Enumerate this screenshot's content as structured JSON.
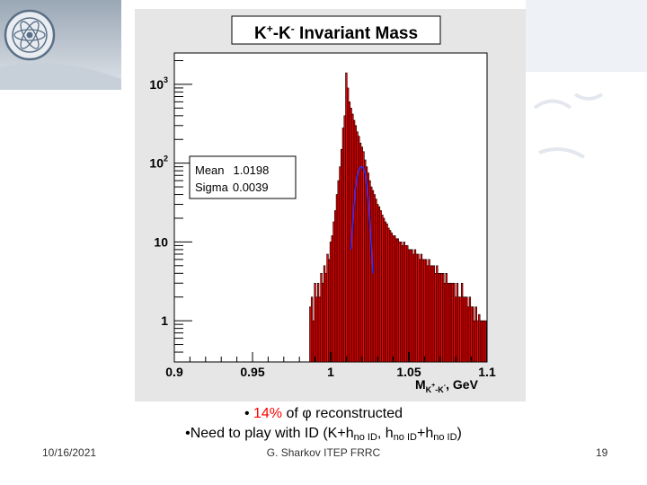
{
  "slide": {
    "bullet1": {
      "marker": "•",
      "percent": "14%",
      "of": "of",
      "phi": "φ",
      "rest": "reconstructed"
    },
    "bullet2": {
      "prefix": "•Need to play with ID (K+h",
      "sub1": "no ID",
      "mid1": ", h",
      "sub2": "no ID",
      "mid2": "+h",
      "sub3": "no ID",
      "suffix": ")"
    },
    "footer": {
      "date": "10/16/2021",
      "author": "G. Sharkov ITEP FRRC",
      "page": "19"
    }
  },
  "chart_data": {
    "type": "histogram",
    "title": "K+-K- Invariant Mass",
    "title_parts": [
      "K",
      "+",
      "-K",
      "-",
      " Invariant Mass"
    ],
    "xlabel_parts": [
      "M",
      "K",
      "+",
      "-K",
      "-",
      ", GeV"
    ],
    "yscale": "log",
    "xlim": [
      0.9,
      1.1
    ],
    "ylim": [
      0.3,
      2500
    ],
    "x_ticks": [
      0.9,
      0.95,
      1,
      1.05,
      1.1
    ],
    "x_tick_labels": [
      "0.9",
      "0.95",
      "1",
      "1.05",
      "1.1"
    ],
    "y_ticks": [
      1,
      10,
      100,
      1000
    ],
    "y_tick_labels": [
      "1",
      "10",
      "10^2",
      "10^3"
    ],
    "stats": {
      "mean_label": "Mean",
      "mean": "1.0198",
      "sigma_label": "Sigma",
      "sigma": "0.0039"
    },
    "series": [
      {
        "name": "histogram",
        "color": "#ff0000",
        "edge_color": "#000000",
        "x": [
          0.987,
          0.988,
          0.989,
          0.99,
          0.991,
          0.992,
          0.993,
          0.994,
          0.995,
          0.996,
          0.997,
          0.998,
          0.999,
          1.0,
          1.001,
          1.002,
          1.003,
          1.004,
          1.005,
          1.006,
          1.007,
          1.008,
          1.009,
          1.01,
          1.011,
          1.012,
          1.013,
          1.014,
          1.015,
          1.016,
          1.017,
          1.018,
          1.019,
          1.02,
          1.021,
          1.022,
          1.023,
          1.024,
          1.025,
          1.026,
          1.027,
          1.028,
          1.029,
          1.03,
          1.031,
          1.032,
          1.033,
          1.034,
          1.035,
          1.036,
          1.037,
          1.038,
          1.039,
          1.04,
          1.041,
          1.042,
          1.043,
          1.044,
          1.045,
          1.046,
          1.047,
          1.048,
          1.049,
          1.05,
          1.051,
          1.052,
          1.053,
          1.054,
          1.055,
          1.056,
          1.057,
          1.058,
          1.059,
          1.06,
          1.061,
          1.062,
          1.063,
          1.064,
          1.065,
          1.066,
          1.067,
          1.068,
          1.069,
          1.07,
          1.071,
          1.072,
          1.073,
          1.074,
          1.075,
          1.076,
          1.077,
          1.078,
          1.079,
          1.08,
          1.081,
          1.082,
          1.083,
          1.084,
          1.085,
          1.086,
          1.087,
          1.088,
          1.089,
          1.09,
          1.091,
          1.092,
          1.093,
          1.094,
          1.095,
          1.096,
          1.097,
          1.098,
          1.099
        ],
        "y": [
          1.5,
          2,
          1,
          3,
          2,
          3,
          2,
          4,
          3,
          5,
          4,
          7,
          6,
          10,
          12,
          18,
          25,
          40,
          60,
          90,
          150,
          280,
          400,
          1400,
          900,
          600,
          500,
          420,
          350,
          300,
          250,
          220,
          180,
          160,
          140,
          110,
          90,
          75,
          60,
          50,
          45,
          40,
          35,
          30,
          28,
          25,
          22,
          20,
          18,
          17,
          15,
          14,
          13,
          12,
          12,
          11,
          11,
          10,
          10,
          9,
          10,
          9,
          9,
          8,
          8,
          8,
          7,
          8,
          7,
          7,
          6,
          7,
          6,
          6,
          6,
          5,
          6,
          5,
          5,
          5,
          4,
          5,
          4,
          4,
          4,
          4,
          3,
          4,
          3,
          3,
          3,
          3,
          3,
          2,
          3,
          2,
          2,
          3,
          2,
          2,
          2,
          1.5,
          2,
          1.5,
          1.5,
          1,
          1.5,
          1,
          1.2,
          1,
          1,
          1,
          1
        ]
      },
      {
        "name": "gaussian-fit",
        "color": "#3030ff",
        "x": [
          1.013,
          1.014,
          1.015,
          1.016,
          1.017,
          1.018,
          1.019,
          1.0198,
          1.021,
          1.022,
          1.023,
          1.024,
          1.025,
          1.026,
          1.027
        ],
        "y": [
          8,
          17,
          31,
          50,
          69,
          82,
          89,
          91,
          86,
          74,
          55,
          35,
          19,
          9,
          4
        ]
      }
    ]
  }
}
